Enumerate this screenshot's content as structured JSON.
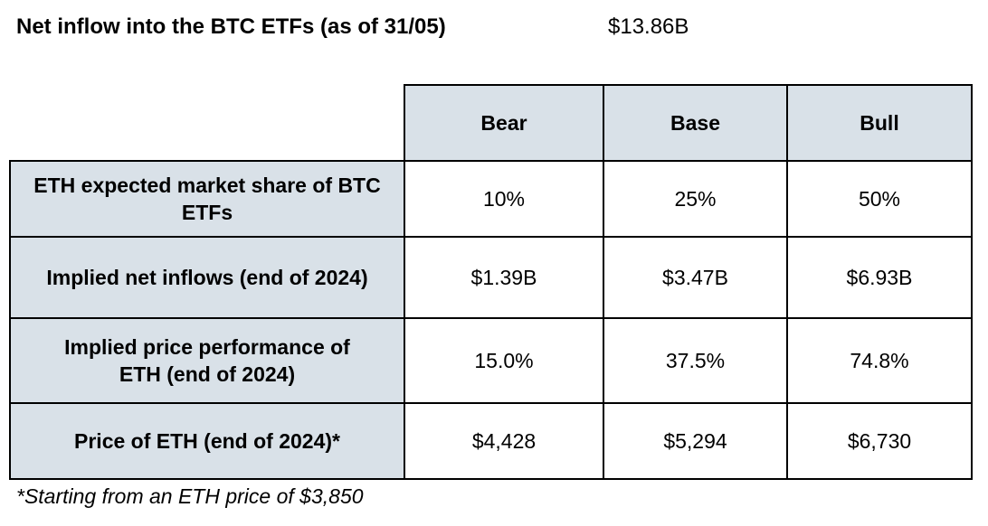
{
  "headline": {
    "label": "Net inflow into the BTC ETFs (as of 31/05)",
    "value": "$13.86B"
  },
  "table": {
    "columns": [
      "Bear",
      "Base",
      "Bull"
    ],
    "rows": [
      {
        "label": "ETH expected market share of BTC ETFs",
        "values": [
          "10%",
          "25%",
          "50%"
        ]
      },
      {
        "label": "Implied net inflows (end of 2024)",
        "values": [
          "$1.39B",
          "$3.47B",
          "$6.93B"
        ]
      },
      {
        "label": "Implied price performance of ETH (end of 2024)",
        "values": [
          "15.0%",
          "37.5%",
          "74.8%"
        ]
      },
      {
        "label": "Price of ETH (end of 2024)*",
        "values": [
          "$4,428",
          "$5,294",
          "$6,730"
        ]
      }
    ]
  },
  "footnote": "*Starting from an ETH price of $3,850",
  "colors": {
    "header_fill": "#d9e1e8",
    "border": "#000000",
    "text": "#000000"
  }
}
